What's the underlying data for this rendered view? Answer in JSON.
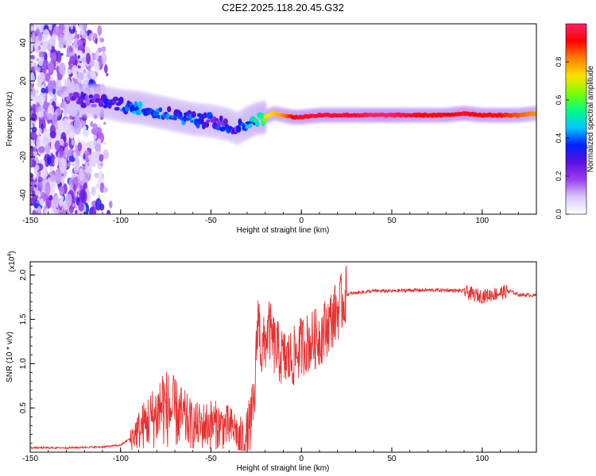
{
  "figure_title": "C2E2.2025.118.20.45.G32",
  "chart_data": [
    {
      "type": "heatmap",
      "title": "",
      "xlabel": "Height of straight line (km)",
      "ylabel": "Frequency (Hz)",
      "xlim": [
        -150,
        130
      ],
      "ylim": [
        -50,
        50
      ],
      "xticks": [
        -150,
        -100,
        -50,
        0,
        50,
        100
      ],
      "yticks": [
        -40,
        -20,
        0,
        20,
        40
      ],
      "colorbar": {
        "label": "Normalized spectral amplitude",
        "range": [
          0,
          1
        ],
        "ticks": [
          "0.0",
          "0.2",
          "0.4",
          "0.6",
          "0.8"
        ],
        "colors": [
          "#ffffff",
          "#d8c8f8",
          "#9a40f0",
          "#5a10e0",
          "#0020ff",
          "#00c8ff",
          "#00ff80",
          "#80ff00",
          "#ffe000",
          "#ff8000",
          "#ff0000",
          "#ff2060"
        ]
      },
      "ridge": {
        "description_points_x": [
          -130,
          -110,
          -100,
          -90,
          -80,
          -70,
          -60,
          -50,
          -40,
          -35,
          -30,
          -25,
          -20,
          -15,
          -10,
          -5,
          0,
          10,
          20,
          30,
          40,
          50,
          60,
          70,
          80,
          90,
          100,
          110,
          120,
          130
        ],
        "frequency_hz": [
          11,
          9,
          7,
          6,
          4,
          2,
          0,
          -1,
          -3,
          -5,
          -2,
          0,
          1,
          3,
          2,
          1,
          1,
          2,
          2,
          2,
          2,
          2,
          2,
          2,
          2,
          3,
          2,
          2,
          2,
          3
        ],
        "amplitude": [
          0.3,
          0.35,
          0.45,
          0.5,
          0.45,
          0.45,
          0.45,
          0.4,
          0.4,
          0.35,
          0.5,
          0.55,
          0.7,
          0.75,
          0.8,
          0.9,
          0.95,
          0.95,
          0.95,
          0.95,
          1.0,
          1.0,
          0.95,
          0.9,
          0.9,
          0.95,
          0.9,
          0.9,
          0.85,
          0.8
        ]
      }
    },
    {
      "type": "line",
      "title": "",
      "xlabel": "Height of straight line (km)",
      "ylabel": "SNR (10 * v/v)",
      "y_multiplier": "(x10^4)",
      "y_multiplier_base": "(x10",
      "y_multiplier_exp": "4",
      "y_multiplier_close": ")",
      "xlim": [
        -150,
        130
      ],
      "ylim": [
        0,
        2.15
      ],
      "xticks": [
        -150,
        -100,
        -50,
        0,
        50,
        100
      ],
      "yticks": [
        0.5,
        1.0,
        1.5,
        2.0
      ],
      "ytick_labels": [
        "0.5",
        "1.0",
        "1.5",
        "2.0"
      ],
      "series": [
        {
          "color": "#e83030",
          "x": [
            -150,
            -130,
            -110,
            -100,
            -95,
            -90,
            -85,
            -80,
            -77,
            -75,
            -70,
            -65,
            -60,
            -55,
            -50,
            -45,
            -40,
            -36,
            -34,
            -30,
            -26,
            -24,
            -22,
            -20,
            -18,
            -15,
            -10,
            -5,
            0,
            5,
            10,
            15,
            20,
            25,
            30,
            40,
            50,
            60,
            70,
            80,
            90,
            95,
            100,
            105,
            110,
            115,
            120,
            130
          ],
          "values": [
            0.05,
            0.05,
            0.06,
            0.08,
            0.15,
            0.25,
            0.35,
            0.42,
            0.55,
            0.5,
            0.45,
            0.38,
            0.3,
            0.3,
            0.32,
            0.3,
            0.28,
            0.25,
            0.05,
            0.15,
            0.55,
            1.6,
            1.1,
            1.25,
            1.4,
            1.2,
            1.05,
            1.05,
            1.2,
            1.25,
            1.3,
            1.45,
            1.6,
            1.78,
            1.8,
            1.82,
            1.82,
            1.83,
            1.83,
            1.83,
            1.82,
            1.78,
            1.76,
            1.78,
            1.8,
            1.82,
            1.78,
            1.77
          ]
        }
      ]
    }
  ]
}
